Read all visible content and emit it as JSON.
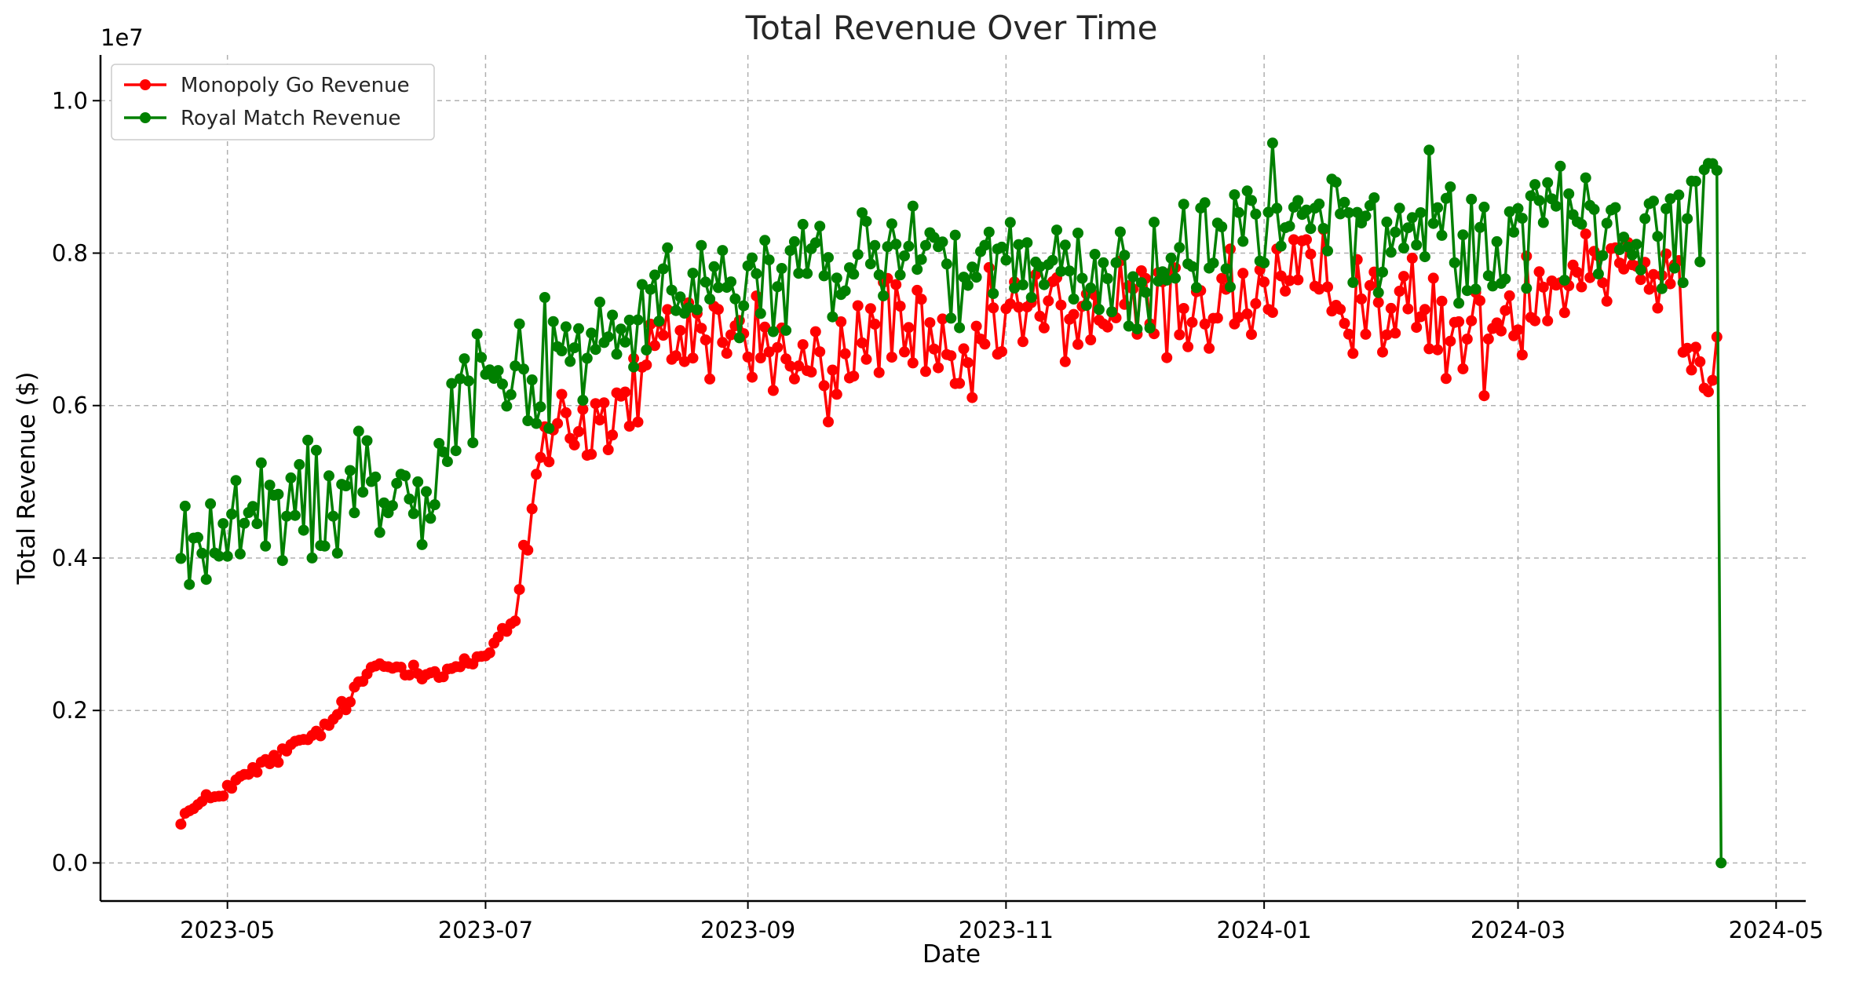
{
  "chart_data": {
    "type": "line",
    "title": "Total Revenue Over Time",
    "xlabel": "Date",
    "ylabel": "Total Revenue ($)",
    "y_offset_label": "1e7",
    "y_scale_factor": 10000000,
    "xlim": [
      "2023-04-01",
      "2024-05-08"
    ],
    "ylim": [
      -0.05,
      1.06
    ],
    "y_ticks": [
      "0.0",
      "0.2",
      "0.4",
      "0.6",
      "0.8",
      "1.0"
    ],
    "x_ticks": [
      "2023-05",
      "2023-07",
      "2023-09",
      "2023-11",
      "2024-01",
      "2024-03",
      "2024-05"
    ],
    "grid": true,
    "legend_position": "upper-left",
    "series": [
      {
        "name": "Monopoly Go Revenue",
        "color": "#ff0000",
        "start_date": "2023-04-20",
        "end_date": "2024-04-17",
        "sample_dates": [
          "2023-04-20",
          "2023-05-10",
          "2023-05-25",
          "2023-06-05",
          "2023-06-20",
          "2023-07-01",
          "2023-07-08",
          "2023-07-15",
          "2023-08-01",
          "2023-08-15",
          "2023-09-01",
          "2023-09-20",
          "2023-10-05",
          "2023-10-20",
          "2023-11-01",
          "2023-11-20",
          "2023-12-10",
          "2023-12-25",
          "2024-01-15",
          "2024-02-01",
          "2024-02-20",
          "2024-03-05",
          "2024-03-20",
          "2024-04-05",
          "2024-04-13",
          "2024-04-17"
        ],
        "sample_values": [
          0.06,
          0.13,
          0.18,
          0.26,
          0.25,
          0.27,
          0.32,
          0.58,
          0.58,
          0.7,
          0.69,
          0.63,
          0.73,
          0.62,
          0.72,
          0.72,
          0.73,
          0.74,
          0.76,
          0.73,
          0.68,
          0.76,
          0.8,
          0.78,
          0.66,
          0.69
        ]
      },
      {
        "name": "Royal Match Revenue",
        "color": "#008000",
        "start_date": "2023-04-20",
        "end_date": "2024-04-18",
        "sample_dates": [
          "2023-04-20",
          "2023-05-10",
          "2023-06-01",
          "2023-06-15",
          "2023-06-30",
          "2023-07-15",
          "2023-08-01",
          "2023-08-15",
          "2023-09-01",
          "2023-09-20",
          "2023-10-10",
          "2023-10-25",
          "2023-11-10",
          "2023-11-25",
          "2023-12-10",
          "2023-12-25",
          "2024-01-10",
          "2024-01-25",
          "2024-02-10",
          "2024-02-25",
          "2024-03-10",
          "2024-03-20",
          "2024-04-05",
          "2024-04-13",
          "2024-04-17",
          "2024-04-18"
        ],
        "sample_values": [
          0.41,
          0.45,
          0.5,
          0.5,
          0.66,
          0.64,
          0.7,
          0.74,
          0.76,
          0.77,
          0.82,
          0.76,
          0.78,
          0.76,
          0.78,
          0.82,
          0.86,
          0.82,
          0.84,
          0.8,
          0.87,
          0.83,
          0.82,
          0.86,
          0.93,
          0.0
        ]
      }
    ]
  }
}
